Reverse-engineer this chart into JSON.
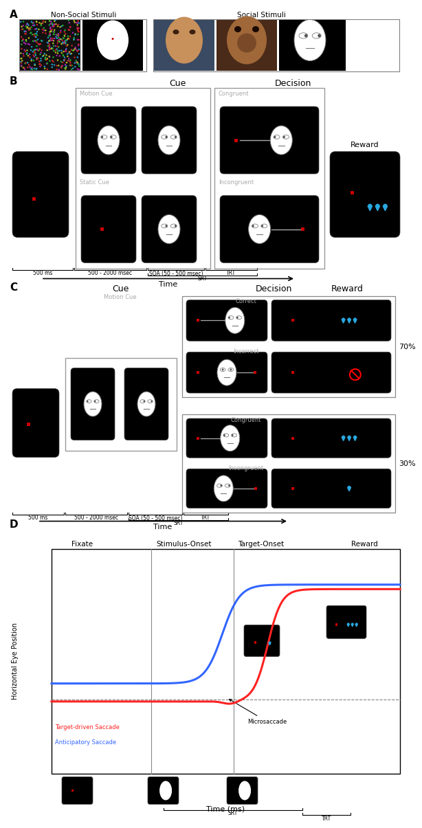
{
  "panel_A_label": "A",
  "panel_B_label": "B",
  "panel_C_label": "C",
  "panel_D_label": "D",
  "non_social_label": "Non-Social Stimuli",
  "social_label": "Social Stimuli",
  "fixate_label": "Fixate",
  "cue_label": "Cue",
  "decision_label": "Decision",
  "reward_label": "Reward",
  "motion_cue_label": "Motion Cue",
  "static_cue_label": "Static Cue",
  "congruent_label": "Congruent",
  "incongruent_label": "Incongruent",
  "correct_label": "Correct",
  "incorrect_label": "Incorrect",
  "fixate_onset_label": "Fixate",
  "stimulus_onset_label": "Stimulus-Onset",
  "target_onset_label": "Target-Onset",
  "reward2_label": "Reward",
  "time_ms_label": "Time (ms)",
  "time_label": "Time",
  "srt_label": "SRT",
  "trt_label": "TRT",
  "soa_label": "SOA (50 - 500 msec)",
  "ms500_label": "500 ms",
  "ms500_2000_label": "500 - 2000 msec",
  "target_driven_label": "Target-driven Saccade",
  "anticipatory_label": "Anticipatory Saccade",
  "microsaccade_label": "Microsaccade",
  "horizontal_eye_pos_label": "Horizontal Eye Position",
  "percent_70": "70%",
  "percent_30": "30%",
  "bg_color": "#000000",
  "face_color": "#ffffff",
  "red_color": "#cc0000",
  "blue_color": "#29a8e0",
  "gray_color": "#888888",
  "line_red": "#ff2222",
  "line_blue": "#3366ff"
}
